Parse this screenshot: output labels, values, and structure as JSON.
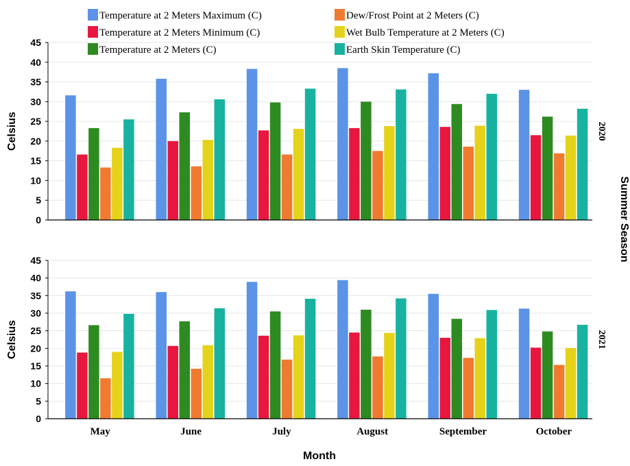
{
  "chart_data": {
    "type": "bar",
    "xlabel": "Month",
    "ylabel": "Celsius",
    "facet_label": "Summer Season",
    "ylim": [
      0,
      45
    ],
    "yticks": [
      0,
      5,
      10,
      15,
      20,
      25,
      30,
      35,
      40,
      45
    ],
    "grid": true,
    "legend_position": "top",
    "categories": [
      "May",
      "June",
      "July",
      "August",
      "September",
      "October"
    ],
    "series_colors": [
      "#5b93e6",
      "#e8173f",
      "#2e8b22",
      "#f07a30",
      "#e5d21a",
      "#17b3a0"
    ],
    "legend": [
      "Temperature at 2 Meters Maximum (C)",
      "Temperature at 2 Meters Minimum (C)",
      "Temperature at 2 Meters (C)",
      "Dew/Frost Point at 2 Meters (C)",
      "Wet Bulb Temperature at 2 Meters (C)",
      "Earth Skin Temperature (C)"
    ],
    "panels": [
      {
        "label": "2020",
        "series": [
          {
            "name": "Temperature at 2 Meters Maximum (C)",
            "values": [
              31.6,
              35.8,
              38.3,
              38.5,
              37.2,
              33.0
            ]
          },
          {
            "name": "Temperature at 2 Meters Minimum (C)",
            "values": [
              16.6,
              20.0,
              22.7,
              23.3,
              23.6,
              21.5
            ]
          },
          {
            "name": "Temperature at 2 Meters (C)",
            "values": [
              23.3,
              27.3,
              29.8,
              30.0,
              29.4,
              26.2
            ]
          },
          {
            "name": "Dew/Frost Point at 2 Meters (C)",
            "values": [
              13.3,
              13.6,
              16.6,
              17.5,
              18.6,
              16.9
            ]
          },
          {
            "name": "Wet Bulb Temperature at 2 Meters (C)",
            "values": [
              18.3,
              20.3,
              23.1,
              23.8,
              23.9,
              21.4
            ]
          },
          {
            "name": "Earth Skin Temperature (C)",
            "values": [
              25.5,
              30.6,
              33.3,
              33.1,
              32.0,
              28.2
            ]
          }
        ]
      },
      {
        "label": "2021",
        "series": [
          {
            "name": "Temperature at 2 Meters Maximum (C)",
            "values": [
              36.2,
              36.0,
              38.9,
              39.4,
              35.5,
              31.3
            ]
          },
          {
            "name": "Temperature at 2 Meters Minimum (C)",
            "values": [
              18.8,
              20.7,
              23.6,
              24.5,
              23.0,
              20.2
            ]
          },
          {
            "name": "Temperature at 2 Meters (C)",
            "values": [
              26.6,
              27.7,
              30.5,
              31.0,
              28.4,
              24.8
            ]
          },
          {
            "name": "Dew/Frost Point at 2 Meters (C)",
            "values": [
              11.5,
              14.2,
              16.8,
              17.7,
              17.3,
              15.3
            ]
          },
          {
            "name": "Wet Bulb Temperature at 2 Meters (C)",
            "values": [
              19.0,
              20.9,
              23.7,
              24.4,
              22.9,
              20.1
            ]
          },
          {
            "name": "Earth Skin Temperature (C)",
            "values": [
              29.8,
              31.4,
              34.1,
              34.2,
              30.9,
              26.7
            ]
          }
        ]
      }
    ]
  }
}
